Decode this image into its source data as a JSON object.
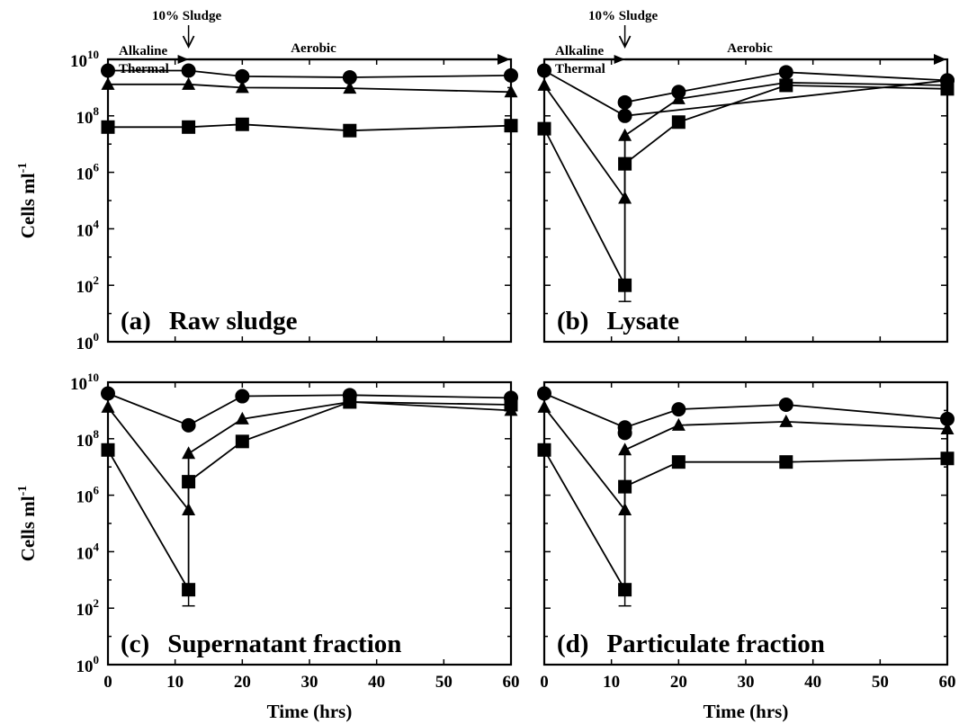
{
  "colors": {
    "ink": "#000000",
    "background": "#ffffff"
  },
  "xlabel": "Time (hrs)",
  "ylabel": "Cells ml",
  "ylabel_superscript": "-1",
  "x_ticks": [
    "0",
    "10",
    "20",
    "30",
    "40",
    "50",
    "60"
  ],
  "y_tick_base": "10",
  "y_tick_exponents": [
    "0",
    "2",
    "4",
    "6",
    "8",
    "10"
  ],
  "phases": {
    "sludge_addition_label": "10% Sludge",
    "alkaline_label": "Alkaline",
    "thermal_label": "Thermal",
    "aerobic_label": "Aerobic"
  },
  "chart_data": [
    {
      "type": "line",
      "panel": "(a)",
      "title": "Raw sludge",
      "xlim": [
        0,
        60
      ],
      "ylim_log10": [
        0,
        10
      ],
      "y_scale": "log",
      "phase_arrows": true,
      "series": [
        {
          "marker": "circle",
          "points": [
            [
              0,
              4000000000.0
            ],
            [
              12,
              4000000000.0
            ],
            [
              20,
              2500000000.0
            ],
            [
              36,
              2300000000.0
            ],
            [
              60,
              2700000000.0
            ]
          ]
        },
        {
          "marker": "triangle",
          "points": [
            [
              0,
              1300000000.0
            ],
            [
              12,
              1300000000.0
            ],
            [
              20,
              1000000000.0
            ],
            [
              36,
              950000000.0
            ],
            [
              60,
              700000000.0
            ]
          ]
        },
        {
          "marker": "square",
          "points": [
            [
              0,
              40000000.0
            ],
            [
              12,
              40000000.0
            ],
            [
              20,
              50000000.0
            ],
            [
              36,
              30000000.0
            ],
            [
              60,
              45000000.0
            ]
          ]
        }
      ]
    },
    {
      "type": "line",
      "panel": "(b)",
      "title": "Lysate",
      "xlim": [
        0,
        60
      ],
      "ylim_log10": [
        0,
        10
      ],
      "y_scale": "log",
      "phase_arrows": true,
      "series": [
        {
          "marker": "circle",
          "points": [
            [
              0,
              4000000000.0
            ],
            [
              12,
              100000000.0
            ],
            [
              60,
              1800000000.0
            ]
          ]
        },
        {
          "marker": "circle",
          "points": [
            [
              12,
              300000000.0
            ],
            [
              20,
              700000000.0
            ],
            [
              36,
              3500000000.0
            ],
            [
              60,
              1800000000.0
            ]
          ]
        },
        {
          "marker": "triangle",
          "points": [
            [
              0,
              1200000000.0
            ],
            [
              12,
              120000.0
            ],
            [
              12,
              20000000.0
            ],
            [
              20,
              400000000.0
            ],
            [
              36,
              1500000000.0
            ],
            [
              60,
              1200000000.0
            ]
          ]
        },
        {
          "marker": "square",
          "points": [
            [
              0,
              35000000.0
            ],
            [
              12,
              100.0
            ],
            [
              12,
              2000000.0
            ],
            [
              20,
              60000000.0
            ],
            [
              36,
              1200000000.0
            ],
            [
              60,
              900000000.0
            ]
          ]
        }
      ]
    },
    {
      "type": "line",
      "panel": "(c)",
      "title": "Supernatant fraction",
      "xlim": [
        0,
        60
      ],
      "ylim_log10": [
        0,
        10
      ],
      "y_scale": "log",
      "phase_arrows": false,
      "series": [
        {
          "marker": "circle",
          "points": [
            [
              0,
              4000000000.0
            ],
            [
              12,
              300000000.0
            ],
            [
              20,
              3200000000.0
            ],
            [
              36,
              3500000000.0
            ],
            [
              60,
              2800000000.0
            ]
          ]
        },
        {
          "marker": "triangle",
          "points": [
            [
              0,
              1300000000.0
            ],
            [
              12,
              300000.0
            ],
            [
              12,
              30000000.0
            ],
            [
              20,
              500000000.0
            ],
            [
              36,
              2000000000.0
            ],
            [
              60,
              1000000000.0
            ]
          ]
        },
        {
          "marker": "square",
          "points": [
            [
              0,
              40000000.0
            ],
            [
              12,
              450.0
            ],
            [
              12,
              3000000.0
            ],
            [
              20,
              80000000.0
            ],
            [
              36,
              2000000000.0
            ],
            [
              60,
              1600000000.0
            ]
          ]
        }
      ]
    },
    {
      "type": "line",
      "panel": "(d)",
      "title": "Particulate fraction",
      "xlim": [
        0,
        60
      ],
      "ylim_log10": [
        0,
        10
      ],
      "y_scale": "log",
      "phase_arrows": false,
      "series": [
        {
          "marker": "circle",
          "points": [
            [
              0,
              4000000000.0
            ],
            [
              12,
              250000000.0
            ],
            [
              20,
              1100000000.0
            ],
            [
              36,
              1600000000.0
            ],
            [
              60,
              500000000.0
            ]
          ]
        },
        {
          "marker": "circle",
          "points": [
            [
              12,
              160000000.0
            ]
          ]
        },
        {
          "marker": "triangle",
          "points": [
            [
              0,
              1300000000.0
            ],
            [
              12,
              300000.0
            ],
            [
              12,
              40000000.0
            ],
            [
              20,
              300000000.0
            ],
            [
              36,
              400000000.0
            ],
            [
              60,
              220000000.0
            ]
          ]
        },
        {
          "marker": "square",
          "points": [
            [
              0,
              40000000.0
            ],
            [
              12,
              450.0
            ],
            [
              12,
              2000000.0
            ],
            [
              20,
              15000000.0
            ],
            [
              36,
              15000000.0
            ],
            [
              60,
              20000000.0
            ]
          ]
        }
      ]
    }
  ]
}
